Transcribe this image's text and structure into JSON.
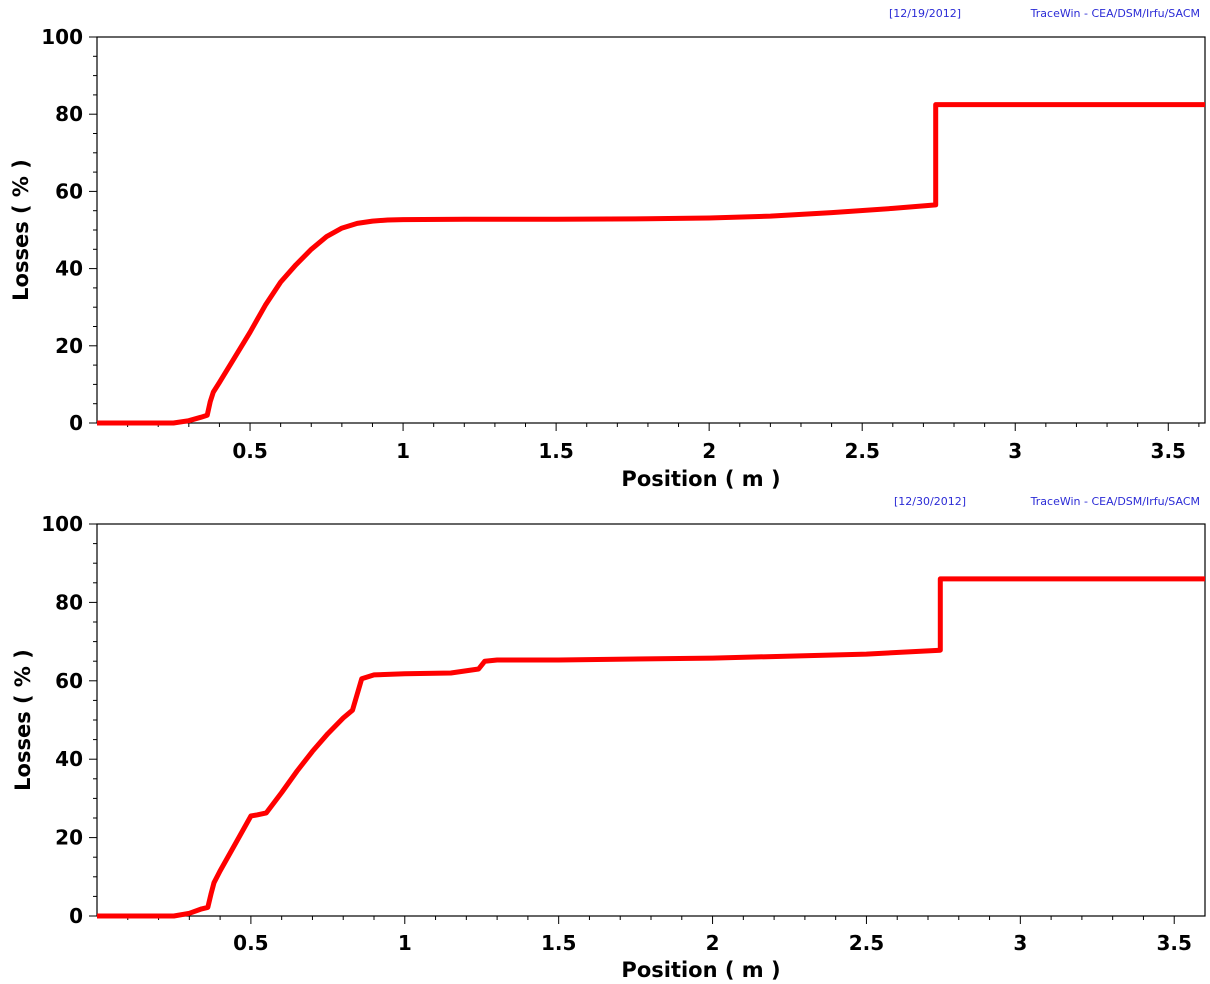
{
  "chart_data": [
    {
      "type": "line",
      "header": {
        "date": "[12/19/2012]",
        "software": "TraceWin - CEA/DSM/Irfu/SACM"
      },
      "xlabel": "Position ( m )",
      "ylabel": "Losses ( % )",
      "xlim": [
        0,
        3.62
      ],
      "ylim": [
        0,
        100
      ],
      "x_ticks": [
        0.5,
        1,
        1.5,
        2,
        2.5,
        3,
        3.5
      ],
      "x_tick_labels": [
        "0.5",
        "1",
        "1.5",
        "2",
        "2.5",
        "3",
        "3.5"
      ],
      "y_ticks": [
        0,
        20,
        40,
        60,
        80,
        100
      ],
      "y_tick_labels": [
        "0",
        "20",
        "40",
        "60",
        "80",
        "100"
      ],
      "grid": false,
      "series": [
        {
          "color": "#ff0000",
          "x": [
            0,
            0.25,
            0.3,
            0.34,
            0.36,
            0.37,
            0.38,
            0.4,
            0.45,
            0.5,
            0.55,
            0.6,
            0.65,
            0.7,
            0.75,
            0.8,
            0.85,
            0.9,
            0.95,
            1.0,
            1.2,
            1.5,
            1.8,
            2.0,
            2.2,
            2.4,
            2.6,
            2.74,
            2.74,
            3.62
          ],
          "y": [
            0,
            0,
            0.6,
            1.5,
            2.0,
            5.5,
            8,
            10.5,
            17,
            23.5,
            30.5,
            36.5,
            41,
            45,
            48.3,
            50.5,
            51.7,
            52.3,
            52.6,
            52.7,
            52.8,
            52.8,
            52.9,
            53.1,
            53.6,
            54.5,
            55.6,
            56.5,
            82.5,
            82.5
          ]
        }
      ]
    },
    {
      "type": "line",
      "header": {
        "date": "[12/30/2012]",
        "software": "TraceWin - CEA/DSM/Irfu/SACM"
      },
      "xlabel": "Position ( m )",
      "ylabel": "Losses ( % )",
      "xlim": [
        0,
        3.6
      ],
      "ylim": [
        0,
        100
      ],
      "x_ticks": [
        0.5,
        1,
        1.5,
        2,
        2.5,
        3,
        3.5
      ],
      "x_tick_labels": [
        "0.5",
        "1",
        "1.5",
        "2",
        "2.5",
        "3",
        "3.5"
      ],
      "y_ticks": [
        0,
        20,
        40,
        60,
        80,
        100
      ],
      "y_tick_labels": [
        "0",
        "20",
        "40",
        "60",
        "80",
        "100"
      ],
      "grid": false,
      "series": [
        {
          "color": "#ff0000",
          "x": [
            0,
            0.25,
            0.3,
            0.34,
            0.36,
            0.37,
            0.38,
            0.4,
            0.45,
            0.5,
            0.52,
            0.55,
            0.6,
            0.65,
            0.7,
            0.75,
            0.8,
            0.83,
            0.86,
            0.9,
            1.0,
            1.15,
            1.24,
            1.26,
            1.3,
            1.5,
            2.0,
            2.5,
            2.74,
            2.74,
            3.6
          ],
          "y": [
            0,
            0,
            0.7,
            1.8,
            2.2,
            5.5,
            8.5,
            11.5,
            18.5,
            25.5,
            25.8,
            26.3,
            31.5,
            37,
            42,
            46.5,
            50.5,
            52.5,
            60.5,
            61.5,
            61.8,
            62,
            63,
            65,
            65.3,
            65.3,
            65.8,
            66.8,
            67.8,
            86,
            86
          ]
        }
      ]
    }
  ]
}
